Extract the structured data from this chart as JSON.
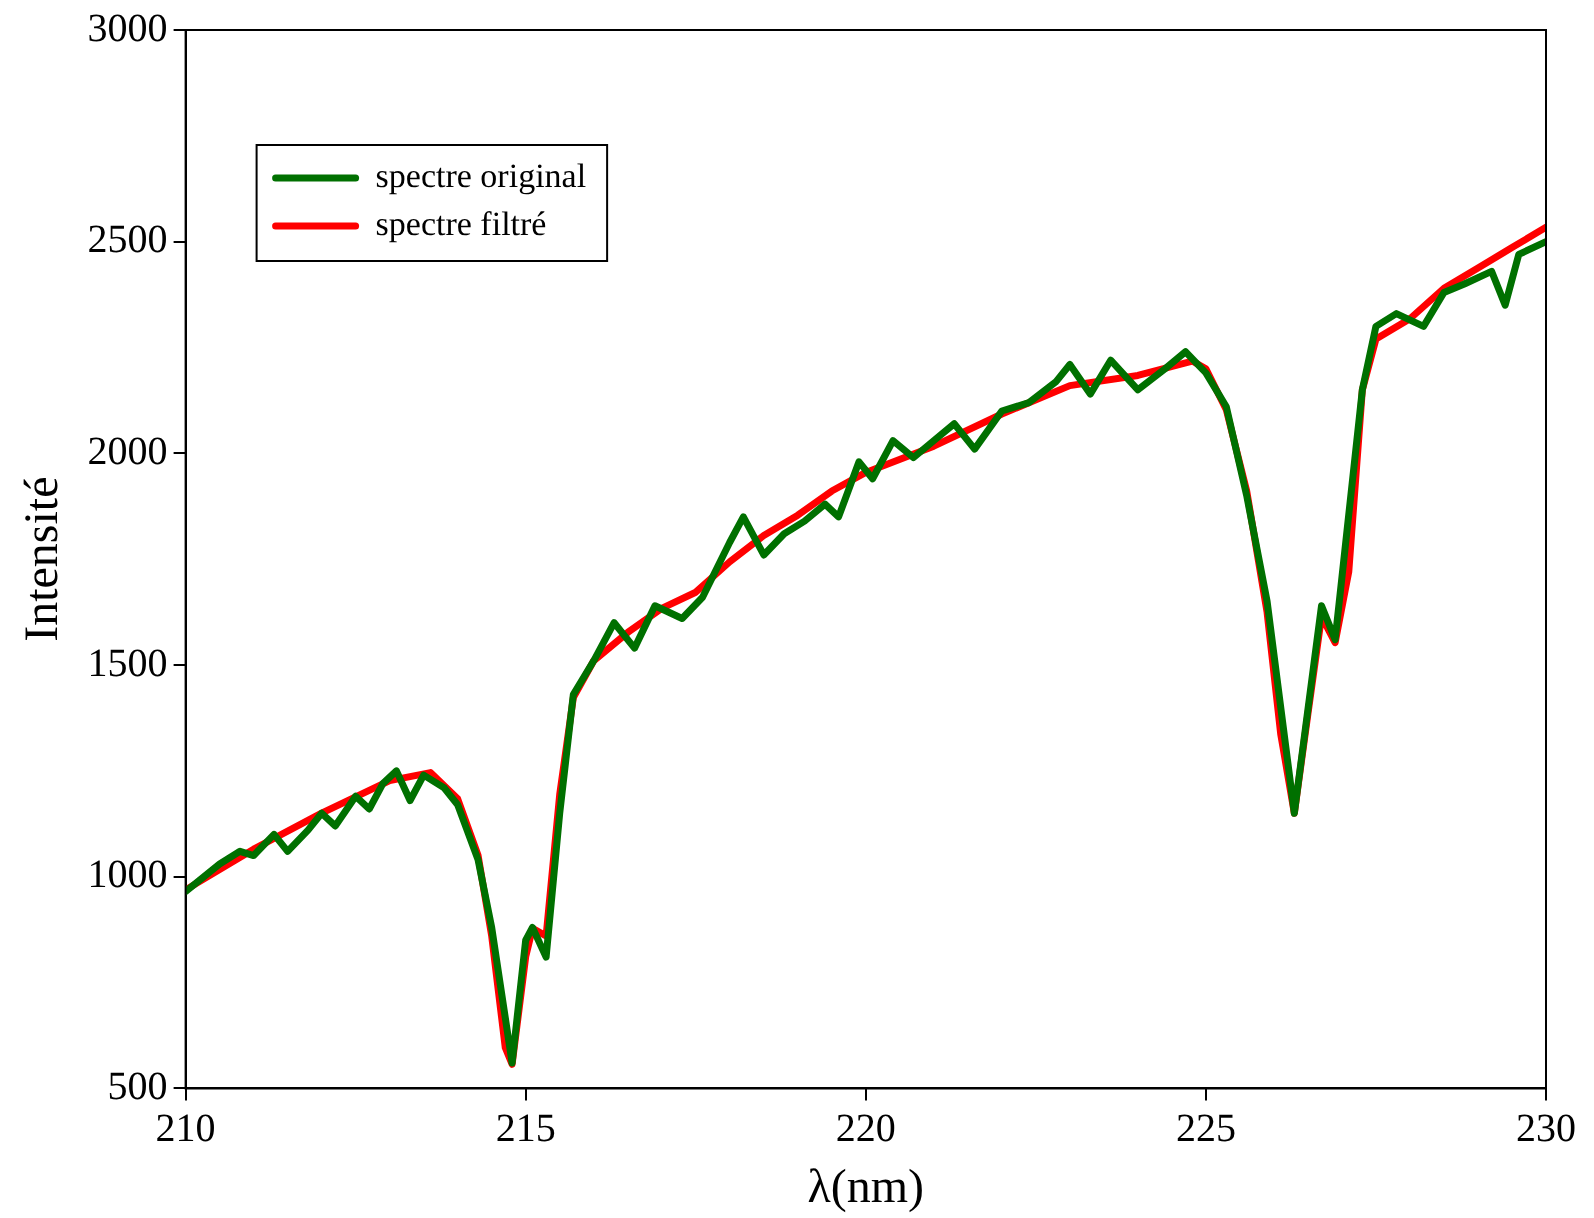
{
  "chart_data": {
    "type": "line",
    "xlabel": "λ(nm)",
    "ylabel": "Intensité",
    "xlim": [
      210,
      230
    ],
    "xticks": [
      210,
      215,
      220,
      225,
      230
    ],
    "ylim": [
      500,
      3000
    ],
    "yticks": [
      500,
      1000,
      1500,
      2000,
      2500,
      3000
    ],
    "grid": false,
    "legend": "top left",
    "marker": "none",
    "line_style": "solid",
    "series": [
      {
        "name": "spectre original",
        "color": "#007000",
        "x": [
          210,
          210.5,
          210.8,
          211,
          211.3,
          211.5,
          211.8,
          212,
          212.2,
          212.5,
          212.7,
          212.9,
          213.1,
          213.3,
          213.5,
          213.8,
          214,
          214.3,
          214.5,
          214.8,
          215,
          215.1,
          215.3,
          215.5,
          215.7,
          216,
          216.3,
          216.6,
          216.9,
          217.3,
          217.6,
          218,
          218.2,
          218.5,
          218.8,
          219.1,
          219.4,
          219.6,
          219.9,
          220.1,
          220.4,
          220.7,
          221,
          221.3,
          221.6,
          222,
          222.4,
          222.8,
          223,
          223.3,
          223.6,
          224,
          224.4,
          224.7,
          225,
          225.3,
          225.6,
          225.9,
          226.3,
          226.7,
          226.9,
          227.3,
          227.5,
          227.8,
          228.2,
          228.5,
          228.8,
          229.2,
          229.4,
          229.6,
          230
        ],
        "values": [
          965,
          1030,
          1060,
          1050,
          1100,
          1060,
          1110,
          1150,
          1120,
          1190,
          1160,
          1220,
          1250,
          1180,
          1240,
          1210,
          1170,
          1040,
          880,
          560,
          850,
          880,
          810,
          1150,
          1430,
          1510,
          1600,
          1540,
          1640,
          1610,
          1660,
          1790,
          1850,
          1760,
          1810,
          1840,
          1880,
          1850,
          1980,
          1940,
          2030,
          1990,
          2030,
          2070,
          2010,
          2100,
          2120,
          2170,
          2210,
          2140,
          2220,
          2150,
          2200,
          2240,
          2190,
          2110,
          1900,
          1650,
          1150,
          1640,
          1560,
          2150,
          2300,
          2330,
          2300,
          2380,
          2400,
          2430,
          2350,
          2470,
          2500
        ]
      },
      {
        "name": "spectre filtré",
        "color": "#ff0000",
        "x": [
          210,
          211,
          212,
          213,
          213.6,
          214,
          214.3,
          214.5,
          214.7,
          214.8,
          215,
          215.1,
          215.3,
          215.5,
          215.7,
          216,
          216.5,
          217,
          217.5,
          218,
          218.5,
          219,
          219.5,
          220,
          221,
          222,
          223,
          224,
          224.8,
          225,
          225.3,
          225.6,
          225.9,
          226.1,
          226.3,
          226.5,
          226.7,
          226.9,
          227.1,
          227.3,
          227.5,
          228,
          228.5,
          229,
          229.5,
          230
        ],
        "values": [
          969,
          1065,
          1150,
          1227,
          1246,
          1184,
          1050,
          860,
          596,
          557,
          811,
          878,
          860,
          1194,
          1423,
          1510,
          1577,
          1634,
          1672,
          1744,
          1806,
          1854,
          1911,
          1955,
          2017,
          2093,
          2160,
          2184,
          2218,
          2200,
          2103,
          1911,
          1624,
          1337,
          1150,
          1385,
          1615,
          1553,
          1720,
          2150,
          2270,
          2318,
          2390,
          2438,
          2486,
          2534
        ]
      }
    ]
  }
}
